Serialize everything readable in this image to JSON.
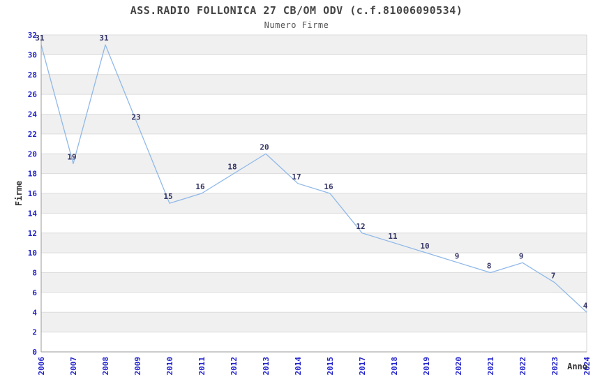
{
  "title": "ASS.RADIO FOLLONICA 27 CB/OM ODV (c.f.81006090534)",
  "subtitle": "Numero Firme",
  "chart_data": {
    "type": "line",
    "title": "ASS.RADIO FOLLONICA 27 CB/OM ODV (c.f.81006090534)",
    "subtitle": "Numero Firme",
    "xlabel": "Anno",
    "ylabel": "Firme",
    "categories": [
      "2006",
      "2007",
      "2008",
      "2009",
      "2010",
      "2011",
      "2012",
      "2013",
      "2014",
      "2015",
      "2017",
      "2018",
      "2019",
      "2020",
      "2021",
      "2022",
      "2023",
      "2024"
    ],
    "values": [
      31,
      19,
      31,
      23,
      15,
      16,
      18,
      20,
      17,
      16,
      12,
      11,
      10,
      9,
      8,
      9,
      7,
      4
    ],
    "ylim": [
      0,
      32
    ],
    "ytick_step": 2,
    "grid": "horizontal",
    "background_bands": true,
    "legend": "none",
    "label_every_point": true,
    "colors": {
      "line": "#8FB8E8",
      "tick_label": "#2222CC",
      "data_label": "#333366",
      "band": "#F0F0F0",
      "gridline": "#DCDCDC",
      "border_light": "#D4D4D4",
      "axis": "#999999",
      "title": "#444444",
      "subtitle": "#555555",
      "axis_label": "#333333"
    }
  }
}
